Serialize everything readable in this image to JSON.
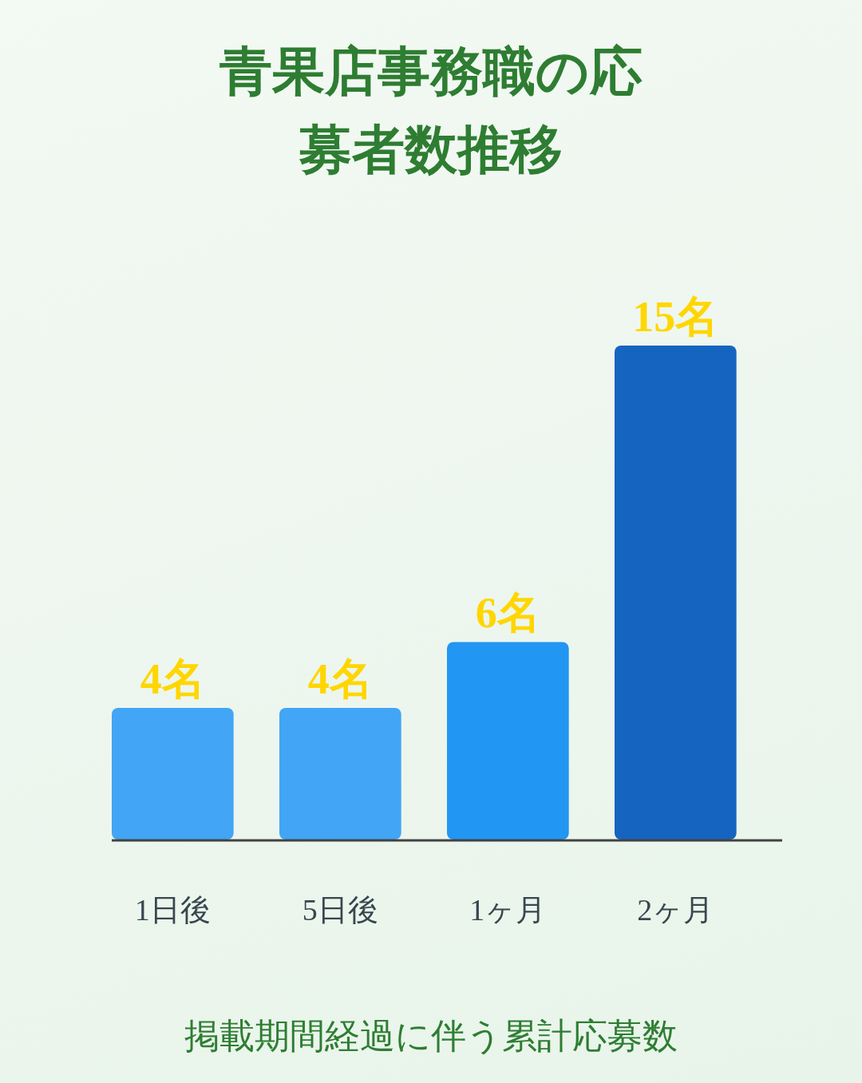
{
  "chart_data": {
    "type": "bar",
    "title": "青果店事務職の応募者数推移",
    "xlabel": "掲載期間経過に伴う累計応募数",
    "categories": [
      "1日後",
      "5日後",
      "1ヶ月",
      "2ヶ月"
    ],
    "values": [
      4,
      4,
      6,
      15
    ],
    "colors": [
      "#42a5f5",
      "#42a5f5",
      "#2196f3",
      "#1565c0"
    ],
    "value_labels": [
      "4名",
      "4名",
      "6名",
      "15名"
    ]
  }
}
